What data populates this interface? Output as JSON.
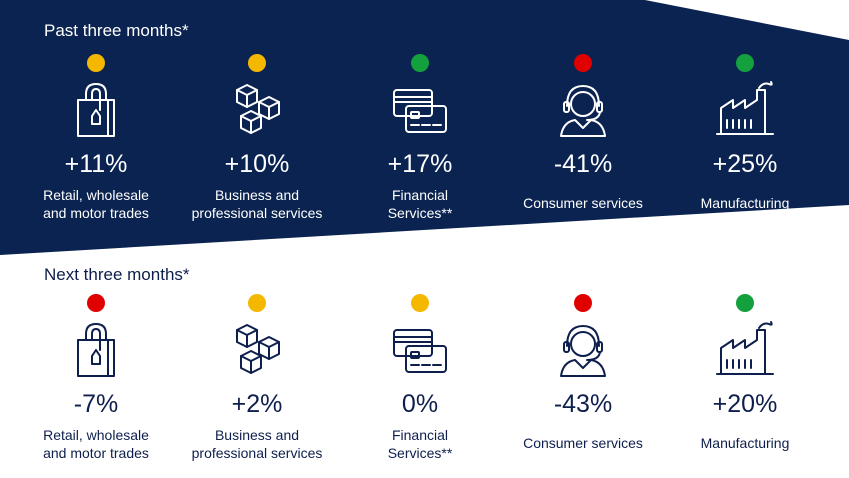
{
  "colors": {
    "band": "#0a2350",
    "amber": "#f5b800",
    "green": "#14a03c",
    "red": "#e00000",
    "text_dark": "#0e1f4d"
  },
  "past": {
    "title": "Past three months*",
    "items": [
      {
        "status": "amber",
        "icon": "shopping-bag-icon",
        "value": "+11%",
        "label_1": "Retail, wholesale",
        "label_2": "and motor trades"
      },
      {
        "status": "amber",
        "icon": "boxes-icon",
        "value": "+10%",
        "label_1": "Business and",
        "label_2": "professional services"
      },
      {
        "status": "green",
        "icon": "credit-cards-icon",
        "value": "+17%",
        "label_1": "Financial",
        "label_2": "Services**"
      },
      {
        "status": "red",
        "icon": "headset-agent-icon",
        "value": "-41%",
        "label_1": "Consumer services",
        "label_2": ""
      },
      {
        "status": "green",
        "icon": "factory-icon",
        "value": "+25%",
        "label_1": "Manufacturing",
        "label_2": ""
      }
    ]
  },
  "next": {
    "title": "Next three months*",
    "items": [
      {
        "status": "red",
        "icon": "shopping-bag-icon",
        "value": "-7%",
        "label_1": "Retail, wholesale",
        "label_2": "and motor trades"
      },
      {
        "status": "amber",
        "icon": "boxes-icon",
        "value": "+2%",
        "label_1": "Business and",
        "label_2": "professional services"
      },
      {
        "status": "amber",
        "icon": "credit-cards-icon",
        "value": "0%",
        "label_1": "Financial",
        "label_2": "Services**"
      },
      {
        "status": "red",
        "icon": "headset-agent-icon",
        "value": "-43%",
        "label_1": "Consumer services",
        "label_2": ""
      },
      {
        "status": "green",
        "icon": "factory-icon",
        "value": "+20%",
        "label_1": "Manufacturing",
        "label_2": ""
      }
    ]
  }
}
